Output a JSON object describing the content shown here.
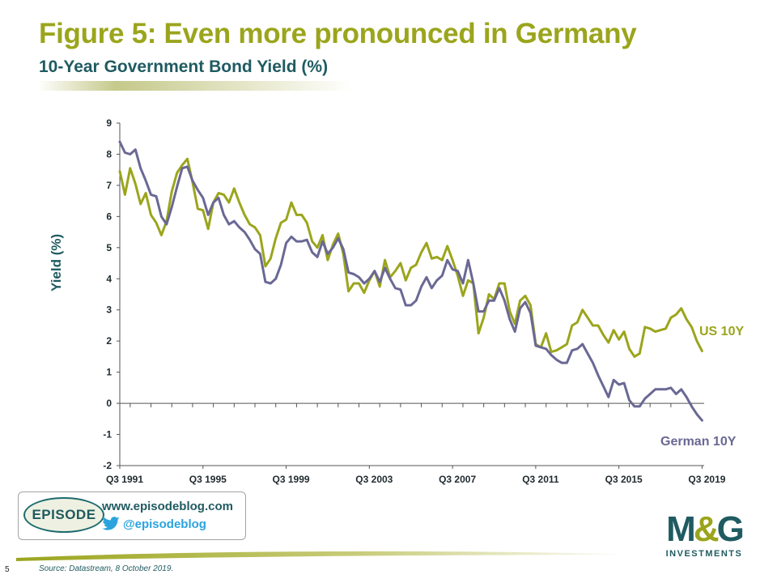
{
  "header": {
    "title": "Figure 5: Even more pronounced in Germany",
    "subtitle": "10-Year Government Bond Yield (%)"
  },
  "chart_data": {
    "type": "line",
    "ylabel": "Yield (%)",
    "xlabel": "",
    "ylim": [
      -2,
      9
    ],
    "yticks": [
      -2,
      -1,
      0,
      1,
      2,
      3,
      4,
      5,
      6,
      7,
      8,
      9
    ],
    "x_start": 1991.5,
    "x_step": 0.25,
    "xlim": [
      1991.5,
      2019.6
    ],
    "xtick_labels": [
      "Q3 1991",
      "Q3 1995",
      "Q3 1999",
      "Q3 2003",
      "Q3 2007",
      "Q3 2011",
      "Q3 2015",
      "Q3 2019"
    ],
    "xtick_values": [
      1991.5,
      1995.5,
      1999.5,
      2003.5,
      2007.5,
      2011.5,
      2015.5,
      2019.5
    ],
    "grid": false,
    "series": [
      {
        "name": "US 10Y",
        "color": "#9ba51c",
        "values": [
          7.45,
          6.7,
          7.55,
          7.05,
          6.4,
          6.75,
          6.05,
          5.8,
          5.4,
          5.85,
          6.8,
          7.4,
          7.65,
          7.85,
          7.1,
          6.25,
          6.2,
          5.6,
          6.45,
          6.75,
          6.7,
          6.45,
          6.9,
          6.45,
          6.05,
          5.75,
          5.65,
          5.4,
          4.4,
          4.65,
          5.3,
          5.8,
          5.9,
          6.45,
          6.05,
          6.05,
          5.8,
          5.2,
          5.0,
          5.4,
          4.6,
          5.1,
          5.45,
          4.8,
          3.6,
          3.85,
          3.85,
          3.55,
          3.95,
          4.25,
          3.75,
          4.6,
          4.05,
          4.25,
          4.5,
          3.95,
          4.35,
          4.45,
          4.85,
          5.15,
          4.65,
          4.7,
          4.6,
          5.05,
          4.6,
          4.1,
          3.45,
          3.95,
          3.85,
          2.25,
          2.75,
          3.5,
          3.35,
          3.85,
          3.85,
          2.95,
          2.55,
          3.3,
          3.45,
          3.15,
          1.9,
          1.8,
          2.25,
          1.65,
          1.7,
          1.8,
          1.9,
          2.5,
          2.6,
          3.0,
          2.75,
          2.5,
          2.5,
          2.2,
          1.95,
          2.35,
          2.05,
          2.3,
          1.75,
          1.5,
          1.6,
          2.45,
          2.4,
          2.3,
          2.35,
          2.4,
          2.75,
          2.85,
          3.05,
          2.7,
          2.45,
          2.0,
          1.68
        ]
      },
      {
        "name": "German 10Y",
        "color": "#6a6894",
        "values": [
          8.4,
          8.05,
          8.0,
          8.15,
          7.55,
          7.15,
          6.7,
          6.65,
          6.0,
          5.75,
          6.3,
          6.95,
          7.55,
          7.6,
          7.15,
          6.85,
          6.6,
          6.05,
          6.45,
          6.6,
          6.05,
          5.75,
          5.85,
          5.65,
          5.5,
          5.25,
          4.95,
          4.8,
          3.9,
          3.85,
          4.0,
          4.45,
          5.15,
          5.35,
          5.2,
          5.2,
          5.25,
          4.85,
          4.7,
          5.2,
          4.8,
          5.0,
          5.3,
          4.95,
          4.2,
          4.15,
          4.05,
          3.85,
          4.0,
          4.25,
          3.9,
          4.35,
          4.0,
          3.7,
          3.65,
          3.15,
          3.15,
          3.3,
          3.75,
          4.05,
          3.7,
          3.95,
          4.1,
          4.6,
          4.3,
          4.25,
          3.85,
          4.6,
          3.85,
          2.95,
          2.95,
          3.3,
          3.3,
          3.7,
          3.3,
          2.7,
          2.3,
          3.05,
          3.25,
          2.9,
          1.85,
          1.8,
          1.75,
          1.55,
          1.4,
          1.3,
          1.3,
          1.7,
          1.75,
          1.9,
          1.6,
          1.3,
          0.9,
          0.55,
          0.2,
          0.75,
          0.6,
          0.65,
          0.1,
          -0.1,
          -0.1,
          0.15,
          0.3,
          0.45,
          0.45,
          0.45,
          0.5,
          0.3,
          0.45,
          0.2,
          -0.1,
          -0.35,
          -0.55
        ]
      }
    ]
  },
  "footer": {
    "episode_logo": "EPISODE",
    "blog_url": "www.episodeblog.com",
    "twitter_handle": "@episodeblog",
    "page_number": "5",
    "source": "Source: Datastream, 8 October 2019.",
    "mg_logo": "M&G",
    "mg_sub": "INVESTMENTS"
  }
}
